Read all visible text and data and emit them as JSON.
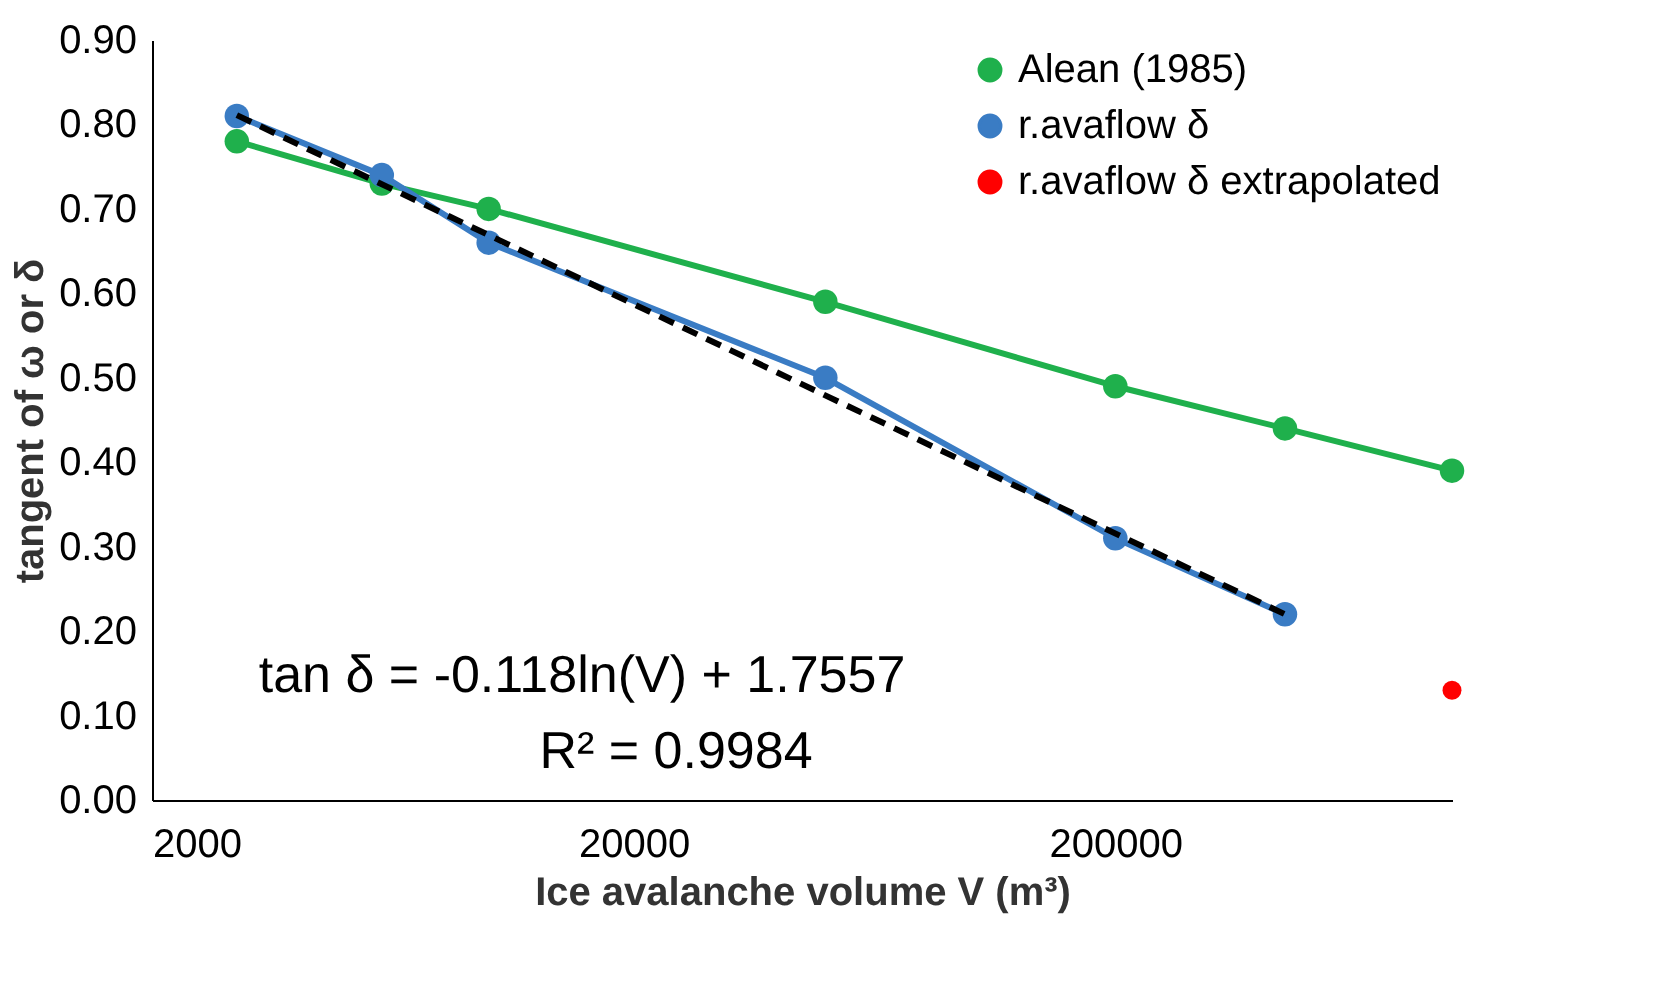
{
  "chart_data": {
    "type": "line",
    "xlabel": "Ice avalanche volume V (m³)",
    "ylabel": "tangent of ω or δ",
    "series": [
      {
        "name": "Alean (1985)",
        "color": "#1fb04c",
        "x": [
          3000,
          6000,
          10000,
          50000,
          200000,
          450000,
          1000000
        ],
        "values": [
          0.78,
          0.73,
          0.7,
          0.59,
          0.49,
          0.44,
          0.39
        ]
      },
      {
        "name": "r.avaflow δ",
        "color": "#3a7cc4",
        "x": [
          3000,
          6000,
          10000,
          50000,
          200000,
          450000
        ],
        "values": [
          0.81,
          0.74,
          0.66,
          0.5,
          0.31,
          0.22
        ]
      },
      {
        "name": "r.avaflow δ extrapolated",
        "color": "#ff0000",
        "type": "scatter",
        "x": [
          1000000
        ],
        "values": [
          0.13
        ]
      },
      {
        "color": "#000000",
        "line_style": "dashed",
        "marker": "none",
        "x": [
          3000,
          450000
        ],
        "values": [
          0.811,
          0.22
        ]
      }
    ],
    "log": "x",
    "xlim": [
      2000,
      1000000
    ],
    "xticks": [
      2000,
      20000,
      200000
    ],
    "ylim": [
      0,
      0.9
    ],
    "yticks": [
      {
        "value": 0,
        "label": "0.00"
      },
      {
        "value": 0.1,
        "label": "0.10"
      },
      {
        "value": 0.2,
        "label": "0.20"
      },
      {
        "value": 0.3,
        "label": "0.30"
      },
      {
        "value": 0.4,
        "label": "0.40"
      },
      {
        "value": 0.5,
        "label": "0.50"
      },
      {
        "value": 0.6,
        "label": "0.60"
      },
      {
        "value": 0.7,
        "label": "0.70"
      },
      {
        "value": 0.8,
        "label": "0.80"
      },
      {
        "value": 0.9,
        "label": "0.90"
      }
    ],
    "marker": "circle",
    "grid": false,
    "legend": "top right",
    "annotations": [
      "tan δ = -0.118ln(V) + 1.7557",
      "R² = 0.9984"
    ]
  }
}
